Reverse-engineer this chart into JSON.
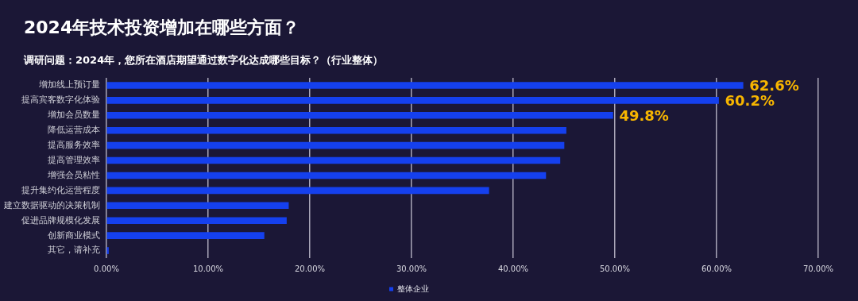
{
  "chart_data": {
    "type": "bar",
    "orientation": "horizontal",
    "title": "2024年技术投资增加在哪些方面？",
    "subtitle": "调研问题：2024年，您所在酒店期望通过数字化达成哪些目标？（行业整体）",
    "categories": [
      "增加线上预订量",
      "提高宾客数字化体验",
      "增加会员数量",
      "降低运营成本",
      "提高服务效率",
      "提高管理效率",
      "增强会员粘性",
      "提升集约化运营程度",
      "建立数据驱动的决策机制",
      "促进品牌规模化发展",
      "创新商业模式",
      "其它，请补充"
    ],
    "series": [
      {
        "name": "整体企业",
        "color": "#1540ee",
        "values": [
          62.6,
          60.2,
          49.8,
          45.2,
          45.0,
          44.6,
          43.2,
          37.6,
          17.9,
          17.7,
          15.5,
          0.2
        ],
        "value_labels": [
          "62.6%",
          "60.2%",
          "49.8%",
          null,
          null,
          null,
          null,
          null,
          null,
          null,
          null,
          null
        ]
      }
    ],
    "xlim": [
      0,
      70
    ],
    "xticks": [
      {
        "value": 0,
        "label": "0.00%"
      },
      {
        "value": 10,
        "label": "10.00%"
      },
      {
        "value": 20,
        "label": "20.00%"
      },
      {
        "value": 30,
        "label": "30.00%"
      },
      {
        "value": 40,
        "label": "40.00%"
      },
      {
        "value": 50,
        "label": "50.00%"
      },
      {
        "value": 60,
        "label": "60.00%"
      },
      {
        "value": 70,
        "label": "70.00%"
      }
    ],
    "grid": "x",
    "legend": "bottom"
  }
}
